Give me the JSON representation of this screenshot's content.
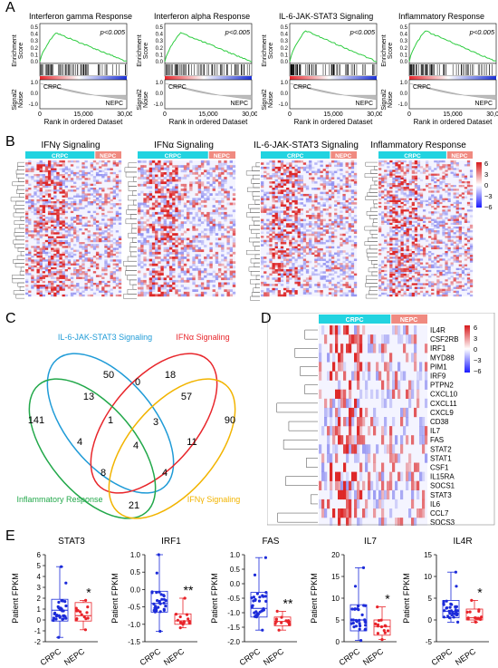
{
  "panel_labels": {
    "a": "A",
    "b": "B",
    "c": "C",
    "d": "D",
    "e": "E"
  },
  "gsea": {
    "ylabel_es": "Enrichment\nScore",
    "ylabel_sn": "Signal2\nNoise",
    "xlabel": "Rank in ordered Dataset",
    "x_ticks": [
      "0",
      "15,000",
      "30,000"
    ],
    "es_ticks": [
      "0.5",
      "0.4",
      "0.3",
      "0.2",
      "0.1",
      "0.0"
    ],
    "sn_ticks": [
      "1.0",
      "0.0",
      "-1.0"
    ],
    "crpc": "CRPC",
    "nepc": "NEPC",
    "pval": "p<0.005",
    "plots": [
      {
        "title": "Interferon gamma Response",
        "peak": 0.42
      },
      {
        "title": "Interferon alpha Response",
        "peak": 0.42
      },
      {
        "title": "IL-6-JAK-STAT3 Signaling",
        "peak": 0.45
      },
      {
        "title": "Inflammatory Response",
        "peak": 0.45
      }
    ]
  },
  "heatmaps_b": {
    "titles": [
      "IFNγ Signaling",
      "IFNα Signaling",
      "IL-6-JAK-STAT3 Signaling",
      "Inflammatory Response"
    ],
    "crpc": "CRPC",
    "nepc": "NEPC",
    "scale_ticks": [
      "6",
      "3",
      "0",
      "−3",
      "−6"
    ],
    "colors": {
      "high": "#d7191c",
      "mid": "#ffffff",
      "low": "#1a1aff",
      "group_crpc": "#22d3e0",
      "group_nepc": "#f08a80"
    }
  },
  "venn": {
    "sets": [
      {
        "name": "IL-6-JAK-STAT3 Signaling",
        "color": "#1f9bd7"
      },
      {
        "name": "IFNα Signaling",
        "color": "#e8262b"
      },
      {
        "name": "Inflammatory Response",
        "color": "#22a84a"
      },
      {
        "name": "IFNγ Signaling",
        "color": "#f2b400"
      }
    ],
    "counts": [
      "50",
      "18",
      "0",
      "13",
      "57",
      "141",
      "1",
      "3",
      "90",
      "4",
      "4",
      "11",
      "8",
      "4",
      "21"
    ]
  },
  "heatmap_d": {
    "crpc": "CRPC",
    "nepc": "NEPC",
    "genes": [
      "IL4R",
      "CSF2RB",
      "IRF1",
      "MYD88",
      "PIM1",
      "IRF9",
      "PTPN2",
      "CXCL10",
      "CXCL11",
      "CXCL9",
      "CD38",
      "IL7",
      "FAS",
      "STAT2",
      "STAT1",
      "CSF1",
      "IL15RA",
      "SOCS1",
      "STAT3",
      "IL6",
      "CCL7",
      "SOCS3"
    ],
    "scale_ticks": [
      "6",
      "3",
      "0",
      "−3",
      "−6"
    ]
  },
  "chart_data": [
    {
      "type": "box",
      "title": "STAT3",
      "ylabel": "Patient FPKM",
      "categories": [
        "CRPC",
        "NEPC"
      ],
      "ylim": [
        -2,
        6
      ],
      "yticks": [
        "-2",
        "-1",
        "0",
        "1",
        "2",
        "3",
        "4",
        "5",
        "6"
      ],
      "significance": "*",
      "series": [
        {
          "name": "CRPC",
          "min": -1.6,
          "q1": -0.1,
          "median": 0.9,
          "q3": 1.9,
          "max": 4.9
        },
        {
          "name": "NEPC",
          "min": -0.9,
          "q1": -0.1,
          "median": 0.4,
          "q3": 1.6,
          "max": 1.8
        }
      ]
    },
    {
      "type": "box",
      "title": "IRF1",
      "ylabel": "Patient FPKM",
      "categories": [
        "CRPC",
        "NEPC"
      ],
      "ylim": [
        -1.5,
        1.0
      ],
      "yticks": [
        "-1.5",
        "-1.0",
        "-0.5",
        "0.0",
        "0.5",
        "1.0"
      ],
      "significance": "**",
      "series": [
        {
          "name": "CRPC",
          "min": -1.2,
          "q1": -0.65,
          "median": -0.4,
          "q3": -0.05,
          "max": 1.0
        },
        {
          "name": "NEPC",
          "min": -1.1,
          "q1": -1.0,
          "median": -0.9,
          "q3": -0.7,
          "max": -0.25
        }
      ]
    },
    {
      "type": "box",
      "title": "FAS",
      "ylabel": "Patient FPKM",
      "categories": [
        "CRPC",
        "NEPC"
      ],
      "ylim": [
        -2.0,
        1.0
      ],
      "yticks": [
        "-2.0",
        "-1.5",
        "-1.0",
        "-0.5",
        "0.0",
        "0.5",
        "1.0"
      ],
      "significance": "**",
      "series": [
        {
          "name": "CRPC",
          "min": -1.6,
          "q1": -1.15,
          "median": -0.85,
          "q3": -0.3,
          "max": 0.9
        },
        {
          "name": "NEPC",
          "min": -1.6,
          "q1": -1.45,
          "median": -1.3,
          "q3": -1.15,
          "max": -0.95
        }
      ]
    },
    {
      "type": "box",
      "title": "IL7",
      "ylabel": "Patient FPKM",
      "categories": [
        "CRPC",
        "NEPC"
      ],
      "ylim": [
        0,
        20
      ],
      "yticks": [
        "0",
        "5",
        "10",
        "15",
        "20"
      ],
      "significance": "*",
      "series": [
        {
          "name": "CRPC",
          "min": 0.3,
          "q1": 2.5,
          "median": 5,
          "q3": 8.5,
          "max": 17
        },
        {
          "name": "NEPC",
          "min": 0.5,
          "q1": 1.5,
          "median": 3.5,
          "q3": 5,
          "max": 8
        }
      ]
    },
    {
      "type": "box",
      "title": "IL4R",
      "ylabel": "Patient FPKM",
      "categories": [
        "CRPC",
        "NEPC"
      ],
      "ylim": [
        -5,
        15
      ],
      "yticks": [
        "-5",
        "0",
        "5",
        "10",
        "15"
      ],
      "significance": "*",
      "series": [
        {
          "name": "CRPC",
          "min": -0.5,
          "q1": 0.5,
          "median": 2,
          "q3": 4.5,
          "max": 11
        },
        {
          "name": "NEPC",
          "min": -0.5,
          "q1": 0,
          "median": 0.5,
          "q3": 2.5,
          "max": 4.5
        }
      ]
    }
  ]
}
